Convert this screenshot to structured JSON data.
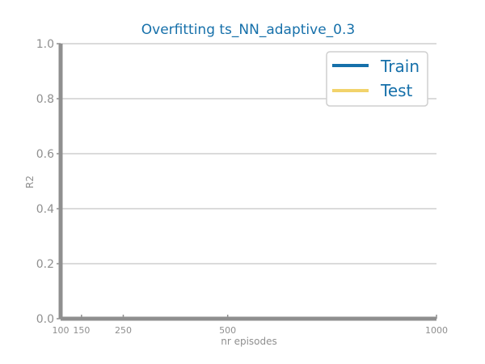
{
  "chart_data": {
    "type": "line",
    "title": "Overfitting ts_NN_adaptive_0.3",
    "xlabel": "nr episodes",
    "ylabel": "R2",
    "x": [
      100,
      150,
      250,
      500,
      1000
    ],
    "xlim": [
      100,
      1000
    ],
    "ylim": [
      0.0,
      1.0
    ],
    "yticks": [
      "0.0",
      "0.2",
      "0.4",
      "0.6",
      "0.8",
      "1.0"
    ],
    "xticks": [
      "100",
      "150",
      "250",
      "500",
      "1000"
    ],
    "grid": true,
    "legend_position": "top-right",
    "series": [
      {
        "name": "Train",
        "color": "#1670aa",
        "values": [
          0,
          0,
          0,
          0,
          0
        ]
      },
      {
        "name": "Test",
        "color": "#f2d36b",
        "values": [
          0,
          0,
          0,
          0,
          0
        ]
      }
    ]
  }
}
